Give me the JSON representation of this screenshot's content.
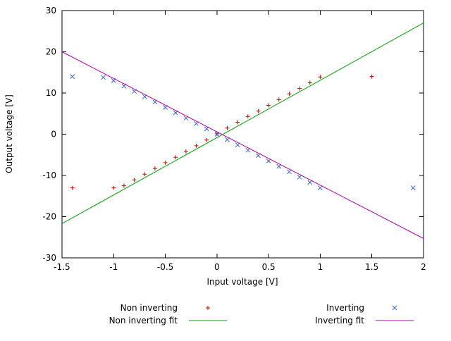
{
  "chart_data": {
    "type": "scatter",
    "title": "",
    "xlabel": "Input voltage [V]",
    "ylabel": "Output voltage [V]",
    "xlim": [
      -1.5,
      2
    ],
    "ylim": [
      -30,
      30
    ],
    "x_tick_values": [
      -1.5,
      -1,
      -0.5,
      0,
      0.5,
      1,
      1.5,
      2
    ],
    "x_tick_labels": [
      "-1.5",
      "-1",
      "-0.5",
      "0",
      "0.5",
      "1",
      "1.5",
      "2"
    ],
    "y_tick_values": [
      -30,
      -20,
      -10,
      0,
      10,
      20,
      30
    ],
    "y_tick_labels": [
      "-30",
      "-20",
      "-10",
      "0",
      "10",
      "20",
      "30"
    ],
    "grid": false,
    "legend_position": "below-plot-two-columns",
    "background_color": "#ffffff",
    "axis_color": "#000000",
    "series": [
      {
        "name": "Non inverting",
        "type": "scatter",
        "marker": "plus",
        "color": "#dd0000",
        "points": [
          [
            -1.4,
            -13.0
          ],
          [
            -1.0,
            -13.0
          ],
          [
            -0.9,
            -12.5
          ],
          [
            -0.8,
            -11.1
          ],
          [
            -0.7,
            -9.7
          ],
          [
            -0.6,
            -8.3
          ],
          [
            -0.5,
            -6.9
          ],
          [
            -0.4,
            -5.6
          ],
          [
            -0.3,
            -4.2
          ],
          [
            -0.2,
            -2.8
          ],
          [
            -0.1,
            -1.4
          ],
          [
            0.0,
            0.1
          ],
          [
            0.1,
            1.5
          ],
          [
            0.2,
            2.9
          ],
          [
            0.3,
            4.3
          ],
          [
            0.4,
            5.6
          ],
          [
            0.5,
            7.0
          ],
          [
            0.6,
            8.4
          ],
          [
            0.7,
            9.8
          ],
          [
            0.8,
            11.1
          ],
          [
            0.9,
            12.5
          ],
          [
            1.0,
            13.9
          ],
          [
            1.5,
            14.0
          ]
        ]
      },
      {
        "name": "Non inverting fit",
        "type": "line",
        "color": "#00a000",
        "points": [
          [
            -1.5,
            -21.7
          ],
          [
            2.0,
            27.0
          ]
        ]
      },
      {
        "name": "Inverting",
        "type": "scatter",
        "marker": "cross",
        "color": "#3366cc",
        "points": [
          [
            -1.4,
            14.0
          ],
          [
            -1.1,
            13.8
          ],
          [
            -1.0,
            13.0
          ],
          [
            -0.9,
            11.7
          ],
          [
            -0.8,
            10.4
          ],
          [
            -0.7,
            9.1
          ],
          [
            -0.6,
            7.8
          ],
          [
            -0.5,
            6.5
          ],
          [
            -0.4,
            5.2
          ],
          [
            -0.3,
            3.9
          ],
          [
            -0.2,
            2.6
          ],
          [
            -0.1,
            1.3
          ],
          [
            0.0,
            0.0
          ],
          [
            0.1,
            -1.3
          ],
          [
            0.2,
            -2.6
          ],
          [
            0.3,
            -3.9
          ],
          [
            0.4,
            -5.2
          ],
          [
            0.5,
            -6.5
          ],
          [
            0.6,
            -7.8
          ],
          [
            0.7,
            -9.1
          ],
          [
            0.8,
            -10.4
          ],
          [
            0.9,
            -11.7
          ],
          [
            1.0,
            -13.0
          ],
          [
            1.9,
            -13.0
          ]
        ]
      },
      {
        "name": "Inverting fit",
        "type": "line",
        "color": "#b000b0",
        "points": [
          [
            -1.5,
            20.0
          ],
          [
            2.0,
            -25.3
          ]
        ]
      }
    ]
  }
}
